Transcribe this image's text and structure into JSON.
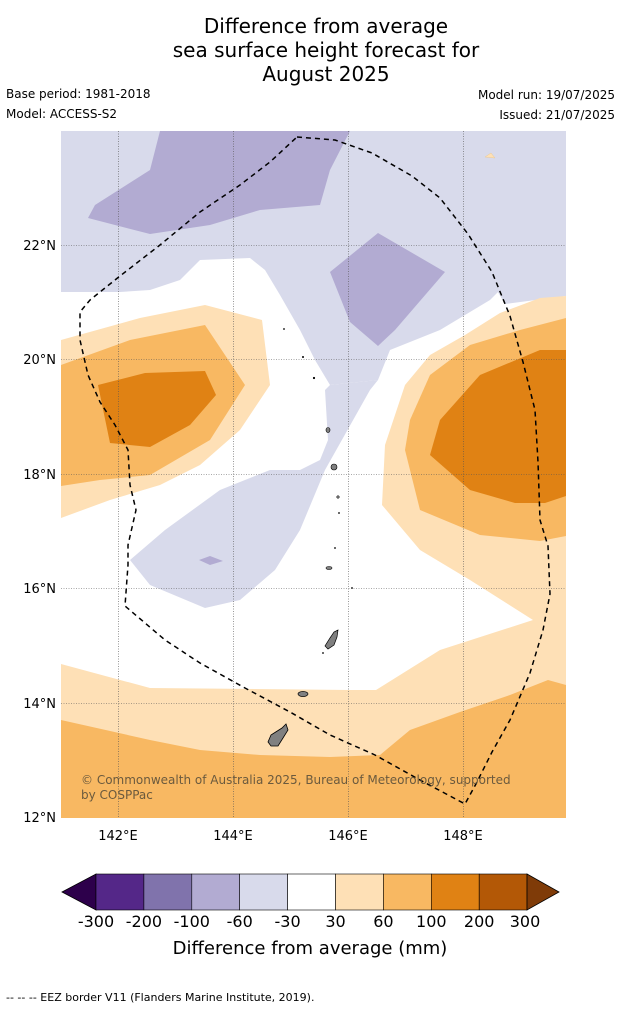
{
  "title": {
    "line1": "Difference from average",
    "line2": "sea surface height forecast for",
    "line3": "August 2025"
  },
  "meta": {
    "base_period": "Base period: 1981-2018",
    "model": "Model: ACCESS-S2",
    "model_run": "Model run: 19/07/2025",
    "issued": "Issued: 21/07/2025"
  },
  "map": {
    "lon_ticks": [
      "142°E",
      "144°E",
      "146°E",
      "148°E"
    ],
    "lat_ticks": [
      "12°N",
      "14°N",
      "16°N",
      "18°N",
      "20°N",
      "22°N"
    ],
    "lon_range": [
      141,
      149.8
    ],
    "lat_range": [
      12,
      24
    ],
    "copyright_line1": "© Commonwealth of Australia 2025, Bureau of Meteorology, supported",
    "copyright_line2": "by COSPPac"
  },
  "colorbar": {
    "title": "Difference from average (mm)",
    "tick_labels": [
      "-300",
      "-200",
      "-100",
      "-60",
      "-30",
      "30",
      "60",
      "100",
      "200",
      "300"
    ],
    "colors": [
      "#2d004b",
      "#542788",
      "#8073ac",
      "#b2abd2",
      "#d8daeb",
      "#ffffff",
      "#fee0b6",
      "#f8b862",
      "#e08214",
      "#b35806",
      "#7f3b08"
    ]
  },
  "footer": "--  --  -- EEZ border V11 (Flanders Marine Institute, 2019)."
}
